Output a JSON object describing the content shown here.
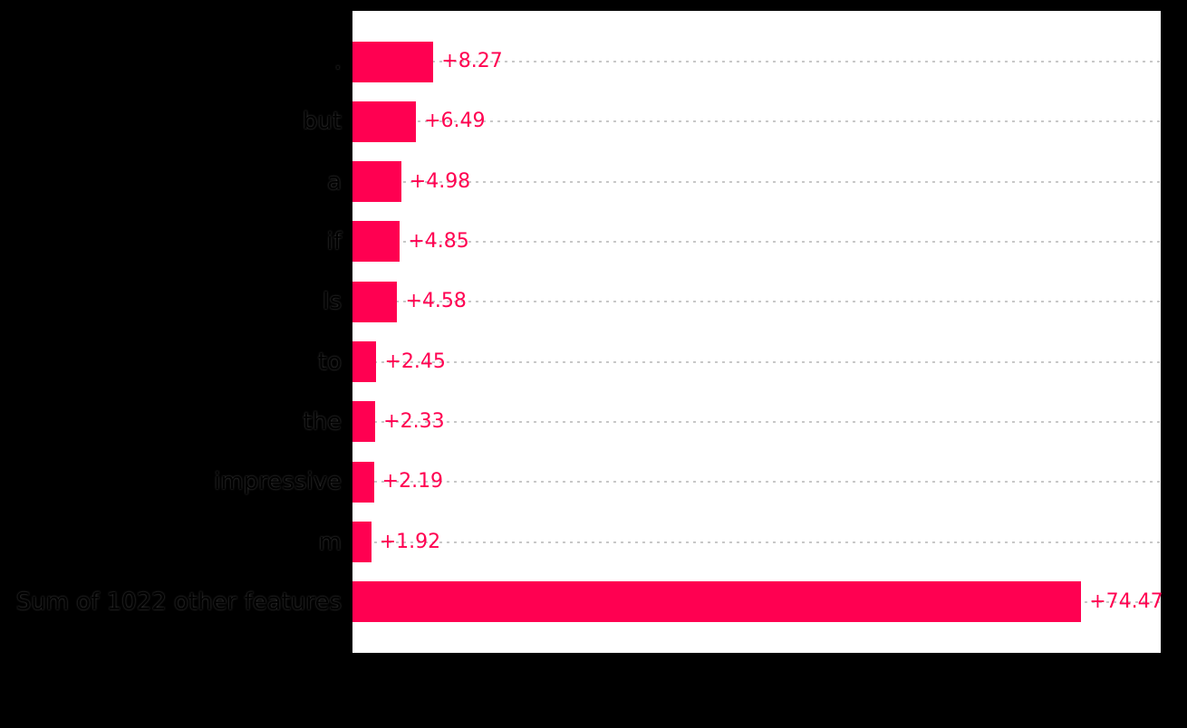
{
  "style": {
    "figure_background": "#000000",
    "plot_background": "#ffffff",
    "bar_color": "#ff0051",
    "value_label_color": "#ff0051",
    "tick_label_color": "#000000",
    "grid_color": "#c8c8c8",
    "spine_color": "#000000"
  },
  "chart_data": {
    "type": "bar",
    "orientation": "horizontal",
    "title": "",
    "categories": [
      ".",
      "but",
      "a",
      "if",
      "Is",
      "to",
      "the",
      "impressive",
      "m",
      "Sum of 1022 other features"
    ],
    "values": [
      8.27,
      6.49,
      4.98,
      4.85,
      4.58,
      2.45,
      2.33,
      2.19,
      1.92,
      74.47
    ],
    "value_labels": [
      "+8.27",
      "+6.49",
      "+4.98",
      "+4.85",
      "+4.58",
      "+2.45",
      "+2.33",
      "+2.19",
      "+1.92",
      "+74.47"
    ],
    "xlim": [
      0,
      82.6
    ],
    "grid": "horizontal-dashed",
    "legend": "none",
    "bar_color": "#ff0051"
  }
}
